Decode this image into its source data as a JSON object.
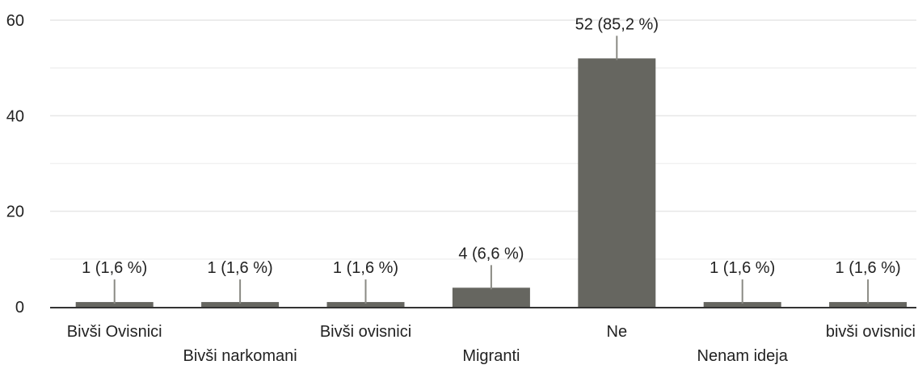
{
  "chart_data": {
    "type": "bar",
    "categories": [
      "Bivši Ovisnici",
      "Bivši narkomani",
      "Bivši ovisnici",
      "Migranti",
      "Ne",
      "Nenam ideja",
      "bivši ovisnici"
    ],
    "values": [
      1,
      1,
      1,
      4,
      52,
      1,
      1
    ],
    "data_labels": [
      "1 (1,6 %)",
      "1 (1,6 %)",
      "1 (1,6 %)",
      "4 (6,6 %)",
      "52 (85,2 %)",
      "1 (1,6 %)",
      "1 (1,6 %)"
    ],
    "y_ticks": [
      "0",
      "20",
      "40",
      "60"
    ],
    "ylim": [
      0,
      60
    ],
    "grid": true,
    "colors": {
      "bar": "#666660",
      "leader": "#8a8a84",
      "axis": "#333333",
      "grid": "#e6e6e6",
      "text": "#222222"
    }
  }
}
